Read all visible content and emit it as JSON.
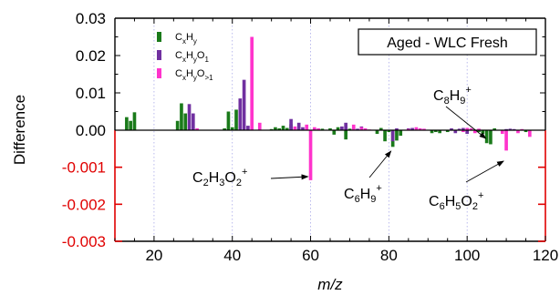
{
  "chart_data": {
    "type": "bar",
    "title": "",
    "xlabel": "m/z",
    "ylabel": "Difference",
    "annotation_box": "Aged - WLC Fresh",
    "xlim": [
      10,
      120
    ],
    "x_ticks": [
      20,
      40,
      60,
      80,
      100,
      120
    ],
    "x_tick_labels": [
      "20",
      "40",
      "60",
      "80",
      "100",
      "120"
    ],
    "panels": [
      {
        "name": "upper",
        "ylim": [
          0.0,
          0.03
        ],
        "y_ticks": [
          0.0,
          0.01,
          0.02,
          0.03
        ],
        "y_tick_labels": [
          "0.00",
          "0.01",
          "0.02",
          "0.03"
        ],
        "tick_color": "#000000"
      },
      {
        "name": "lower",
        "ylim": [
          -0.003,
          0.0
        ],
        "y_ticks": [
          -0.001,
          -0.002,
          -0.003
        ],
        "y_tick_labels": [
          "-0.001",
          "-0.002",
          "-0.003"
        ],
        "tick_color": "#e00000"
      }
    ],
    "legend": {
      "placement": "top-left",
      "entries": [
        {
          "key": "CxHy",
          "base": "C",
          "parts": [
            [
              "x",
              "sub"
            ],
            [
              "H",
              ""
            ],
            [
              "y",
              "sub"
            ]
          ],
          "color": "#1a7a1a"
        },
        {
          "key": "CxHyO1",
          "base": "C",
          "parts": [
            [
              "x",
              "sub"
            ],
            [
              "H",
              ""
            ],
            [
              "y",
              "sub"
            ],
            [
              "O",
              ""
            ],
            [
              "1",
              "sub"
            ]
          ],
          "color": "#7030a0"
        },
        {
          "key": "CxHyO>1",
          "base": "C",
          "parts": [
            [
              "x",
              "sub"
            ],
            [
              "H",
              ""
            ],
            [
              "y",
              "sub"
            ],
            [
              "O",
              ""
            ],
            [
              ">1",
              "sub"
            ]
          ],
          "color": "#ff33cc"
        }
      ]
    },
    "series": [
      {
        "key": "CxHy",
        "color": "#1a7a1a",
        "x": [
          13,
          14,
          15,
          26,
          27,
          28,
          38,
          39,
          40,
          41,
          50,
          51,
          52,
          53,
          54,
          55,
          56,
          63,
          65,
          66,
          67,
          69,
          70,
          77,
          78,
          79,
          80,
          81,
          82,
          83,
          91,
          92,
          93,
          95,
          103,
          104,
          105,
          106,
          107,
          115
        ],
        "y": [
          0.0035,
          0.0025,
          0.0048,
          0.0025,
          0.0072,
          0.0045,
          0.0005,
          0.005,
          0.0008,
          0.0055,
          0.0003,
          0.0008,
          0.0005,
          0.0012,
          0.0006,
          0.0016,
          0.0005,
          0.0004,
          0.0005,
          -0.00012,
          0.0008,
          -0.00025,
          0.0004,
          -0.0001,
          0.0006,
          -0.0003,
          -5e-05,
          -0.00045,
          -0.00028,
          -0.00015,
          -8e-05,
          -5e-05,
          -8e-05,
          -5e-05,
          -5e-05,
          -0.0001,
          -0.00035,
          -0.00038,
          0.0005,
          -5e-05
        ]
      },
      {
        "key": "CxHyO1",
        "color": "#7030a0",
        "x": [
          29,
          30,
          42,
          43,
          44,
          55,
          57,
          58,
          59,
          68,
          69,
          71,
          72,
          73,
          81,
          82,
          85,
          86,
          96,
          97,
          98,
          99,
          100,
          110,
          111,
          112
        ],
        "y": [
          0.007,
          0.0045,
          0.0085,
          0.0135,
          0.0012,
          0.003,
          0.002,
          0.0008,
          0.0005,
          0.001,
          0.002,
          0.0006,
          0.0004,
          0.001,
          -0.0003,
          0.0005,
          0.0005,
          0.0006,
          0.0005,
          -8e-05,
          0.0004,
          0.0006,
          -0.0001,
          0.0003,
          0.0004,
          0.0003
        ]
      },
      {
        "key": "CxHyO>1",
        "color": "#ff33cc",
        "x": [
          31,
          45,
          47,
          56,
          59,
          60,
          61,
          62,
          71,
          73,
          74,
          75,
          85,
          87,
          88,
          89,
          99,
          100,
          101,
          102,
          103,
          109,
          110,
          113,
          114,
          116
        ],
        "y": [
          0.0005,
          0.025,
          0.002,
          0.001,
          0.0015,
          -0.00135,
          0.0008,
          0.0005,
          0.0015,
          0.0008,
          0.0005,
          0.0002,
          0.0003,
          0.0008,
          0.0005,
          0.0004,
          -5e-05,
          0.0006,
          0.0005,
          -8e-05,
          0.0004,
          -0.0001,
          -0.00055,
          -8e-05,
          0.0003,
          -0.00018
        ]
      }
    ],
    "annotations": [
      {
        "key": "C2H3O2",
        "parts": [
          [
            "C",
            ""
          ],
          [
            "2",
            "sub"
          ],
          [
            "H",
            ""
          ],
          [
            "3",
            "sub"
          ],
          [
            "O",
            ""
          ],
          [
            "2",
            "sub"
          ],
          [
            "+",
            "sup"
          ]
        ],
        "target_x": 60
      },
      {
        "key": "C6H9",
        "parts": [
          [
            "C",
            ""
          ],
          [
            "6",
            "sub"
          ],
          [
            "H",
            ""
          ],
          [
            "9",
            "sub"
          ],
          [
            "+",
            "sup"
          ]
        ],
        "target_x": 81
      },
      {
        "key": "C6H5O2",
        "parts": [
          [
            "C",
            ""
          ],
          [
            "6",
            "sub"
          ],
          [
            "H",
            ""
          ],
          [
            "5",
            "sub"
          ],
          [
            "O",
            ""
          ],
          [
            "2",
            "sub"
          ],
          [
            "+",
            "sup"
          ]
        ],
        "target_x": 110
      },
      {
        "key": "C8H9",
        "parts": [
          [
            "C",
            ""
          ],
          [
            "8",
            "sub"
          ],
          [
            "H",
            ""
          ],
          [
            "9",
            "sub"
          ],
          [
            "+",
            "sup"
          ]
        ],
        "target_x": 105
      }
    ],
    "gridlines_x": [
      20,
      40,
      60,
      80,
      100
    ]
  }
}
